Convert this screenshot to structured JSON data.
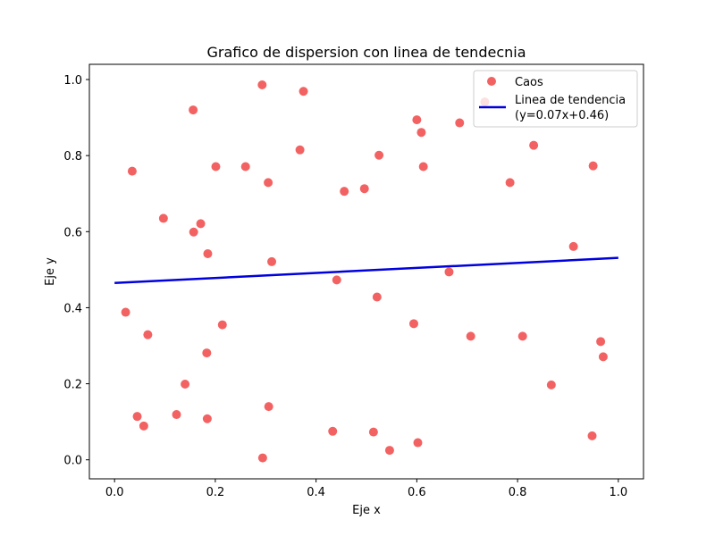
{
  "chart_data": {
    "type": "scatter",
    "title": "Grafico de dispersion con linea de tendecnia",
    "xlabel": "Eje x",
    "ylabel": "Eje y",
    "xlim": [
      -0.05,
      1.05
    ],
    "ylim": [
      -0.05,
      1.04
    ],
    "xticks": [
      0.0,
      0.2,
      0.4,
      0.6,
      0.8,
      1.0
    ],
    "xtick_labels": [
      "0.0",
      "0.2",
      "0.4",
      "0.6",
      "0.8",
      "1.0"
    ],
    "yticks": [
      0.0,
      0.2,
      0.4,
      0.6,
      0.8,
      1.0
    ],
    "ytick_labels": [
      "0.0",
      "0.2",
      "0.4",
      "0.6",
      "0.8",
      "1.0"
    ],
    "grid": false,
    "legend_position": "top-right",
    "scatter_series": {
      "name": "Caos",
      "color": "#f03b3b",
      "points": [
        [
          0.022,
          0.388
        ],
        [
          0.035,
          0.759
        ],
        [
          0.045,
          0.114
        ],
        [
          0.058,
          0.089
        ],
        [
          0.066,
          0.329
        ],
        [
          0.097,
          0.635
        ],
        [
          0.123,
          0.119
        ],
        [
          0.14,
          0.199
        ],
        [
          0.156,
          0.92
        ],
        [
          0.157,
          0.599
        ],
        [
          0.171,
          0.621
        ],
        [
          0.183,
          0.281
        ],
        [
          0.184,
          0.108
        ],
        [
          0.185,
          0.542
        ],
        [
          0.201,
          0.771
        ],
        [
          0.214,
          0.355
        ],
        [
          0.26,
          0.771
        ],
        [
          0.293,
          0.986
        ],
        [
          0.294,
          0.005
        ],
        [
          0.305,
          0.729
        ],
        [
          0.306,
          0.14
        ],
        [
          0.312,
          0.521
        ],
        [
          0.368,
          0.815
        ],
        [
          0.375,
          0.969
        ],
        [
          0.433,
          0.075
        ],
        [
          0.441,
          0.473
        ],
        [
          0.456,
          0.706
        ],
        [
          0.496,
          0.713
        ],
        [
          0.514,
          0.073
        ],
        [
          0.521,
          0.428
        ],
        [
          0.525,
          0.801
        ],
        [
          0.546,
          0.025
        ],
        [
          0.594,
          0.358
        ],
        [
          0.6,
          0.894
        ],
        [
          0.602,
          0.045
        ],
        [
          0.609,
          0.861
        ],
        [
          0.613,
          0.771
        ],
        [
          0.664,
          0.494
        ],
        [
          0.685,
          0.886
        ],
        [
          0.707,
          0.325
        ],
        [
          0.735,
          0.941
        ],
        [
          0.785,
          0.729
        ],
        [
          0.81,
          0.325
        ],
        [
          0.832,
          0.827
        ],
        [
          0.867,
          0.197
        ],
        [
          0.911,
          0.561
        ],
        [
          0.948,
          0.063
        ],
        [
          0.95,
          0.773
        ],
        [
          0.965,
          0.311
        ],
        [
          0.97,
          0.271
        ]
      ]
    },
    "trend_line": {
      "name": "Linea de tendencia",
      "equation": "(y=0.07x+0.46)",
      "color": "#0000dd",
      "x": [
        0.0,
        1.0
      ],
      "y": [
        0.465,
        0.531
      ]
    }
  }
}
